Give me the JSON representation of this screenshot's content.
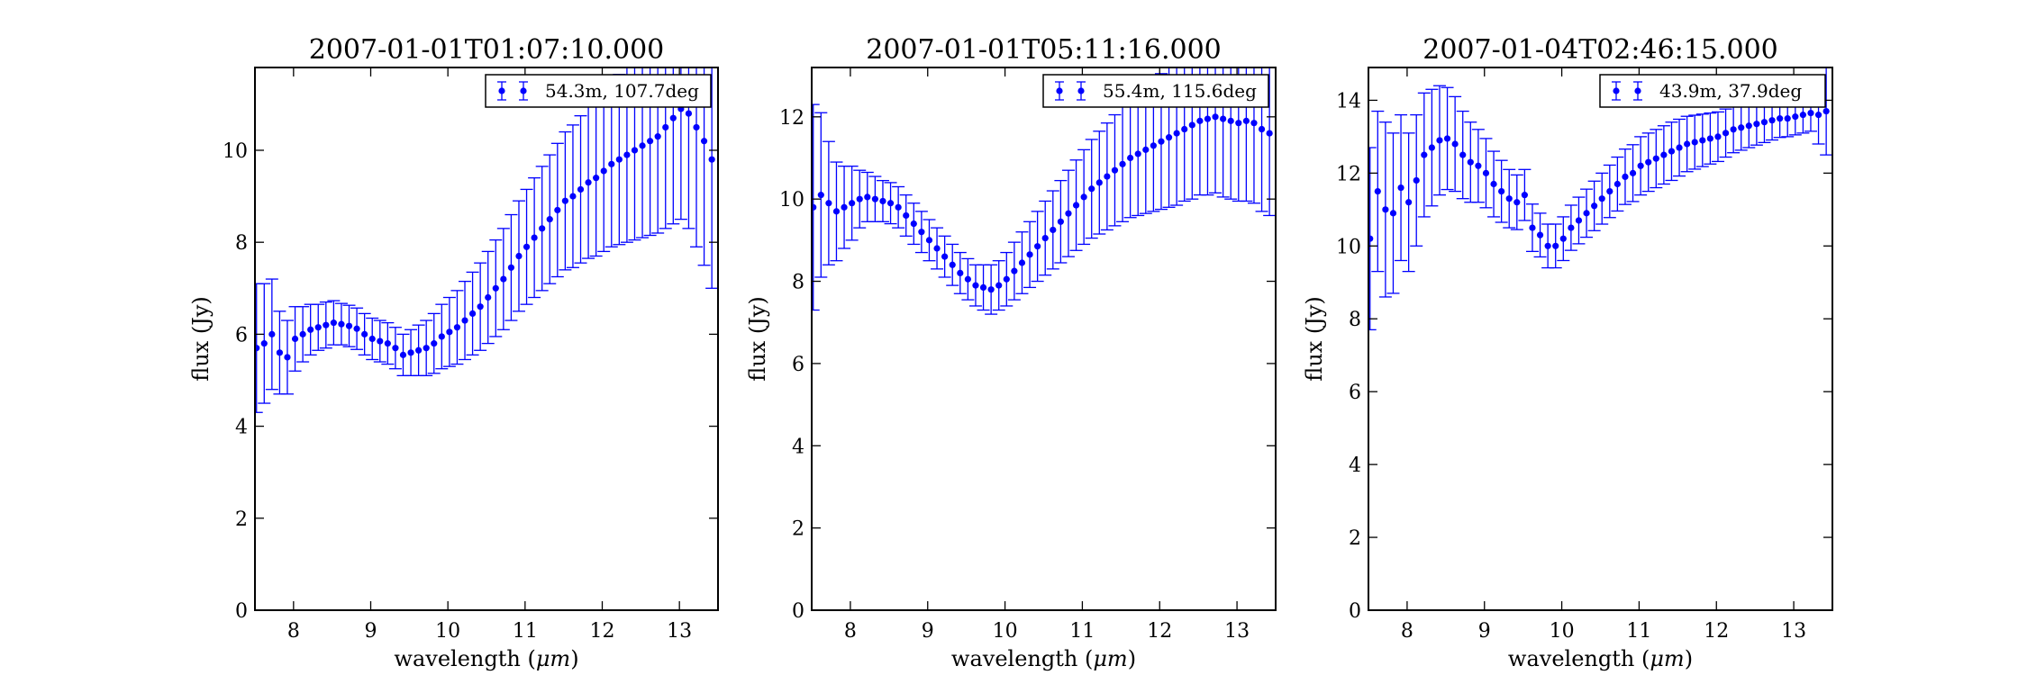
{
  "chart_data": [
    {
      "type": "scatter",
      "title": "2007-01-01T01:07:10.000",
      "xlabel": "wavelength (μm)",
      "ylabel": "flux (Jy)",
      "xlim": [
        7.5,
        13.5
      ],
      "ylim": [
        0,
        11.8
      ],
      "xticks": [
        "8",
        "9",
        "10",
        "11",
        "12",
        "13"
      ],
      "yticks": [
        "0",
        "2",
        "4",
        "6",
        "8",
        "10"
      ],
      "legend": "54.3m, 107.7deg",
      "legend_position": "top-right",
      "grid": false,
      "series": [
        {
          "name": "54.3m, 107.7deg",
          "color": "#0000ff",
          "x": [
            7.52,
            7.62,
            7.72,
            7.82,
            7.92,
            8.02,
            8.12,
            8.22,
            8.32,
            8.42,
            8.52,
            8.62,
            8.72,
            8.82,
            8.92,
            9.02,
            9.12,
            9.22,
            9.32,
            9.42,
            9.52,
            9.62,
            9.72,
            9.82,
            9.92,
            10.02,
            10.12,
            10.22,
            10.32,
            10.42,
            10.52,
            10.62,
            10.72,
            10.82,
            10.92,
            11.02,
            11.12,
            11.22,
            11.32,
            11.42,
            11.52,
            11.62,
            11.72,
            11.82,
            11.92,
            12.02,
            12.12,
            12.22,
            12.32,
            12.42,
            12.52,
            12.62,
            12.72,
            12.82,
            12.92,
            13.02,
            13.12,
            13.22,
            13.32,
            13.42
          ],
          "y": [
            5.7,
            5.8,
            6.0,
            5.6,
            5.5,
            5.9,
            6.0,
            6.1,
            6.15,
            6.2,
            6.25,
            6.22,
            6.18,
            6.12,
            6.0,
            5.9,
            5.85,
            5.8,
            5.7,
            5.55,
            5.6,
            5.65,
            5.7,
            5.8,
            5.95,
            6.05,
            6.15,
            6.3,
            6.45,
            6.6,
            6.8,
            7.0,
            7.2,
            7.45,
            7.7,
            7.9,
            8.1,
            8.3,
            8.5,
            8.7,
            8.9,
            9.0,
            9.15,
            9.3,
            9.4,
            9.55,
            9.7,
            9.8,
            9.9,
            10.0,
            10.1,
            10.2,
            10.3,
            10.5,
            10.7,
            10.9,
            10.8,
            10.5,
            10.2,
            9.8
          ],
          "err": [
            1.4,
            1.3,
            1.2,
            0.9,
            0.8,
            0.7,
            0.6,
            0.55,
            0.5,
            0.5,
            0.48,
            0.45,
            0.45,
            0.45,
            0.45,
            0.45,
            0.45,
            0.45,
            0.45,
            0.45,
            0.5,
            0.55,
            0.6,
            0.65,
            0.7,
            0.75,
            0.8,
            0.85,
            0.9,
            0.95,
            1.0,
            1.05,
            1.1,
            1.15,
            1.2,
            1.25,
            1.3,
            1.35,
            1.4,
            1.45,
            1.5,
            1.55,
            1.6,
            1.65,
            1.7,
            1.75,
            1.8,
            1.85,
            1.9,
            1.95,
            2.0,
            2.05,
            2.1,
            2.2,
            2.3,
            2.4,
            2.5,
            2.6,
            2.7,
            2.8
          ]
        }
      ]
    },
    {
      "type": "scatter",
      "title": "2007-01-01T05:11:16.000",
      "xlabel": "wavelength (μm)",
      "ylabel": "flux (Jy)",
      "xlim": [
        7.5,
        13.5
      ],
      "ylim": [
        0,
        13.2
      ],
      "xticks": [
        "8",
        "9",
        "10",
        "11",
        "12",
        "13"
      ],
      "yticks": [
        "0",
        "2",
        "4",
        "6",
        "8",
        "10",
        "12"
      ],
      "legend": "55.4m, 115.6deg",
      "legend_position": "top-right",
      "grid": false,
      "series": [
        {
          "name": "55.4m, 115.6deg",
          "color": "#0000ff",
          "x": [
            7.52,
            7.62,
            7.72,
            7.82,
            7.92,
            8.02,
            8.12,
            8.22,
            8.32,
            8.42,
            8.52,
            8.62,
            8.72,
            8.82,
            8.92,
            9.02,
            9.12,
            9.22,
            9.32,
            9.42,
            9.52,
            9.62,
            9.72,
            9.82,
            9.92,
            10.02,
            10.12,
            10.22,
            10.32,
            10.42,
            10.52,
            10.62,
            10.72,
            10.82,
            10.92,
            11.02,
            11.12,
            11.22,
            11.32,
            11.42,
            11.52,
            11.62,
            11.72,
            11.82,
            11.92,
            12.02,
            12.12,
            12.22,
            12.32,
            12.42,
            12.52,
            12.62,
            12.72,
            12.82,
            12.92,
            13.02,
            13.12,
            13.22,
            13.32,
            13.42
          ],
          "y": [
            9.8,
            10.1,
            9.9,
            9.7,
            9.8,
            9.9,
            10.0,
            10.05,
            10.0,
            9.95,
            9.9,
            9.8,
            9.6,
            9.4,
            9.2,
            9.0,
            8.8,
            8.6,
            8.4,
            8.2,
            8.05,
            7.9,
            7.85,
            7.8,
            7.9,
            8.05,
            8.25,
            8.45,
            8.65,
            8.85,
            9.05,
            9.25,
            9.45,
            9.65,
            9.85,
            10.05,
            10.25,
            10.4,
            10.55,
            10.7,
            10.85,
            11.0,
            11.1,
            11.2,
            11.3,
            11.4,
            11.5,
            11.6,
            11.7,
            11.8,
            11.9,
            11.95,
            12.0,
            11.95,
            11.9,
            11.85,
            11.9,
            11.85,
            11.7,
            11.6
          ],
          "err": [
            2.5,
            2.0,
            1.5,
            1.2,
            1.0,
            0.9,
            0.7,
            0.6,
            0.55,
            0.5,
            0.5,
            0.5,
            0.5,
            0.5,
            0.5,
            0.5,
            0.5,
            0.5,
            0.5,
            0.5,
            0.5,
            0.5,
            0.55,
            0.6,
            0.6,
            0.65,
            0.7,
            0.75,
            0.8,
            0.85,
            0.9,
            0.95,
            1.0,
            1.05,
            1.1,
            1.15,
            1.2,
            1.25,
            1.3,
            1.35,
            1.4,
            1.45,
            1.5,
            1.55,
            1.6,
            1.65,
            1.7,
            1.75,
            1.75,
            1.8,
            1.8,
            1.85,
            1.85,
            1.9,
            1.9,
            1.9,
            1.95,
            1.95,
            2.0,
            2.0
          ]
        }
      ]
    },
    {
      "type": "scatter",
      "title": "2007-01-04T02:46:15.000",
      "xlabel": "wavelength (μm)",
      "ylabel": "flux (Jy)",
      "xlim": [
        7.5,
        13.5
      ],
      "ylim": [
        0,
        14.9
      ],
      "xticks": [
        "8",
        "9",
        "10",
        "11",
        "12",
        "13"
      ],
      "yticks": [
        "0",
        "2",
        "4",
        "6",
        "8",
        "10",
        "12",
        "14"
      ],
      "legend": "43.9m, 37.9deg",
      "legend_position": "top-right",
      "grid": false,
      "series": [
        {
          "name": "43.9m, 37.9deg",
          "color": "#0000ff",
          "x": [
            7.52,
            7.62,
            7.72,
            7.82,
            7.92,
            8.02,
            8.12,
            8.22,
            8.32,
            8.42,
            8.52,
            8.62,
            8.72,
            8.82,
            8.92,
            9.02,
            9.12,
            9.22,
            9.32,
            9.42,
            9.52,
            9.62,
            9.72,
            9.82,
            9.92,
            10.02,
            10.12,
            10.22,
            10.32,
            10.42,
            10.52,
            10.62,
            10.72,
            10.82,
            10.92,
            11.02,
            11.12,
            11.22,
            11.32,
            11.42,
            11.52,
            11.62,
            11.72,
            11.82,
            11.92,
            12.02,
            12.12,
            12.22,
            12.32,
            12.42,
            12.52,
            12.62,
            12.72,
            12.82,
            12.92,
            13.02,
            13.12,
            13.22,
            13.32,
            13.42
          ],
          "y": [
            10.2,
            11.5,
            11.0,
            10.9,
            11.6,
            11.2,
            11.8,
            12.5,
            12.7,
            12.9,
            12.95,
            12.8,
            12.5,
            12.3,
            12.2,
            12.0,
            11.7,
            11.5,
            11.3,
            11.2,
            11.4,
            10.5,
            10.3,
            10.0,
            10.0,
            10.2,
            10.5,
            10.7,
            10.9,
            11.1,
            11.3,
            11.5,
            11.7,
            11.9,
            12.0,
            12.2,
            12.3,
            12.4,
            12.5,
            12.6,
            12.7,
            12.8,
            12.85,
            12.9,
            12.95,
            13.0,
            13.1,
            13.2,
            13.25,
            13.3,
            13.35,
            13.4,
            13.45,
            13.5,
            13.5,
            13.55,
            13.6,
            13.65,
            13.6,
            13.7
          ],
          "err": [
            2.5,
            2.2,
            2.4,
            2.2,
            2.0,
            1.9,
            1.8,
            1.7,
            1.6,
            1.5,
            1.4,
            1.3,
            1.2,
            1.1,
            1.0,
            0.95,
            0.9,
            0.85,
            0.8,
            0.75,
            0.7,
            0.65,
            0.6,
            0.6,
            0.6,
            0.6,
            0.62,
            0.64,
            0.66,
            0.68,
            0.7,
            0.72,
            0.74,
            0.76,
            0.78,
            0.8,
            0.8,
            0.8,
            0.8,
            0.8,
            0.78,
            0.76,
            0.74,
            0.72,
            0.7,
            0.68,
            0.66,
            0.64,
            0.62,
            0.6,
            0.58,
            0.56,
            0.54,
            0.52,
            0.5,
            0.5,
            0.5,
            0.5,
            0.8,
            1.2
          ]
        }
      ]
    }
  ]
}
